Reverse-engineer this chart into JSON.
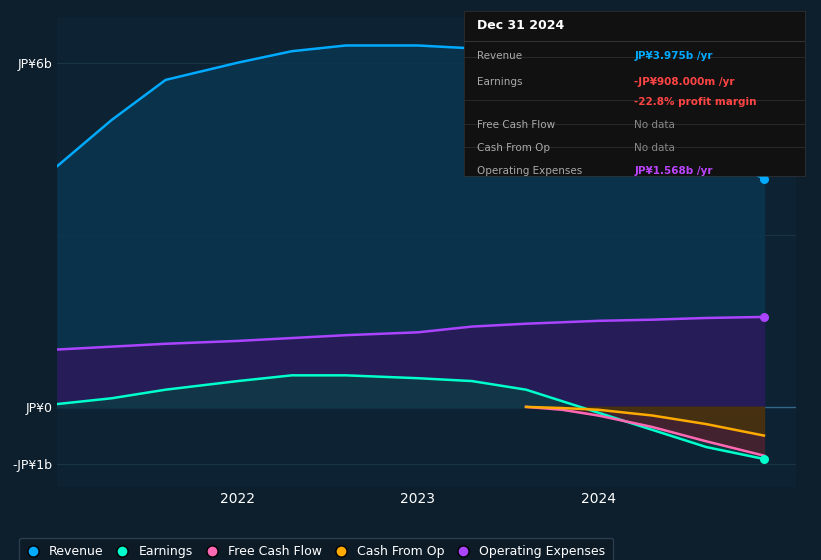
{
  "background_color": "#0d1f2d",
  "plot_bg_color": "#0d2233",
  "grid_color": "#1a3545",
  "title_box": {
    "date": "Dec 31 2024",
    "rows": [
      {
        "label": "Revenue",
        "value": "JP¥3.975b /yr",
        "value_color": "#00aaff"
      },
      {
        "label": "Earnings",
        "value": "-JP¥908.000m /yr",
        "value_color": "#ff4444"
      },
      {
        "label": "",
        "value": "-22.8% profit margin",
        "value_color": "#ff4444"
      },
      {
        "label": "Free Cash Flow",
        "value": "No data",
        "value_color": "#888888"
      },
      {
        "label": "Cash From Op",
        "value": "No data",
        "value_color": "#888888"
      },
      {
        "label": "Operating Expenses",
        "value": "JP¥1.568b /yr",
        "value_color": "#bb44ff"
      }
    ]
  },
  "yticks": [
    "JP¥6b",
    "JP¥0",
    "-JP¥1b"
  ],
  "ytick_values": [
    6000000000,
    0,
    -1000000000
  ],
  "xtick_labels": [
    "2022",
    "2023",
    "2024"
  ],
  "ylim": [
    -1400000000,
    6800000000
  ],
  "xlim_start": 2021.0,
  "xlim_end": 2025.1,
  "series": {
    "revenue": {
      "color": "#00aaff",
      "fill_color": "#0a3550",
      "label": "Revenue"
    },
    "earnings": {
      "color": "#00ffcc",
      "fill_color": "#0a4040",
      "label": "Earnings"
    },
    "fcf": {
      "color": "#ff69b4",
      "fill_color": "#5a1a2a",
      "label": "Free Cash Flow"
    },
    "cashfromop": {
      "color": "#ffaa00",
      "fill_color": "#4a3a00",
      "label": "Cash From Op"
    },
    "opex": {
      "color": "#aa44ff",
      "fill_color": "#2a1a5a",
      "label": "Operating Expenses"
    }
  },
  "revenue_x": [
    2021.0,
    2021.3,
    2021.6,
    2022.0,
    2022.3,
    2022.6,
    2023.0,
    2023.3,
    2023.6,
    2024.0,
    2024.3,
    2024.6,
    2024.92
  ],
  "revenue_y": [
    4200000000,
    5000000000,
    5700000000,
    6000000000,
    6200000000,
    6300000000,
    6300000000,
    6250000000,
    6100000000,
    5800000000,
    5200000000,
    4500000000,
    3975000000
  ],
  "earnings_x": [
    2021.0,
    2021.3,
    2021.6,
    2022.0,
    2022.3,
    2022.6,
    2023.0,
    2023.3,
    2023.6,
    2023.8,
    2024.0,
    2024.3,
    2024.6,
    2024.92
  ],
  "earnings_y": [
    50000000,
    150000000,
    300000000,
    450000000,
    550000000,
    550000000,
    500000000,
    450000000,
    300000000,
    100000000,
    -100000000,
    -400000000,
    -700000000,
    -908000000
  ],
  "opex_x": [
    2021.0,
    2021.3,
    2021.6,
    2022.0,
    2022.3,
    2022.6,
    2023.0,
    2023.3,
    2023.6,
    2024.0,
    2024.3,
    2024.6,
    2024.92
  ],
  "opex_y": [
    1000000000,
    1050000000,
    1100000000,
    1150000000,
    1200000000,
    1250000000,
    1300000000,
    1400000000,
    1450000000,
    1500000000,
    1520000000,
    1550000000,
    1568000000
  ],
  "fcf_x": [
    2023.6,
    2023.8,
    2024.0,
    2024.3,
    2024.6,
    2024.92
  ],
  "fcf_y": [
    0,
    -50000000,
    -150000000,
    -350000000,
    -600000000,
    -850000000
  ],
  "cashfromop_x": [
    2023.6,
    2023.8,
    2024.0,
    2024.3,
    2024.6,
    2024.92
  ],
  "cashfromop_y": [
    0,
    -20000000,
    -50000000,
    -150000000,
    -300000000,
    -500000000
  ],
  "legend_items": [
    {
      "label": "Revenue",
      "color": "#00aaff"
    },
    {
      "label": "Earnings",
      "color": "#00ffcc"
    },
    {
      "label": "Free Cash Flow",
      "color": "#ff69b4"
    },
    {
      "label": "Cash From Op",
      "color": "#ffaa00"
    },
    {
      "label": "Operating Expenses",
      "color": "#aa44ff"
    }
  ]
}
